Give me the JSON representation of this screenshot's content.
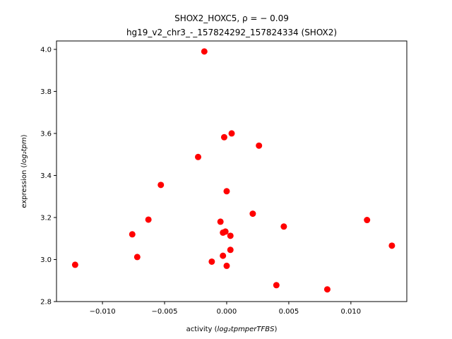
{
  "chart_data": {
    "type": "scatter",
    "title_line1": "SHOX2_HOXC5, ρ = − 0.09",
    "title_line2": "hg19_v2_chr3_-_157824292_157824334 (SHOX2)",
    "xlabel_prefix": "activity (",
    "xlabel_math": "log₂tpmperTFBS",
    "xlabel_suffix": ")",
    "ylabel_prefix": "expression (",
    "ylabel_math": "log₂tpm",
    "ylabel_suffix": ")",
    "xlim": [
      -0.0137,
      0.0145
    ],
    "ylim": [
      2.8,
      4.04
    ],
    "x_ticks": [
      -0.01,
      -0.005,
      0.0,
      0.005,
      0.01
    ],
    "x_tick_labels": [
      "−0.010",
      "−0.005",
      "0.000",
      "0.005",
      "0.010"
    ],
    "y_ticks": [
      2.8,
      3.0,
      3.2,
      3.4,
      3.6,
      3.8,
      4.0
    ],
    "y_tick_labels": [
      "2.8",
      "3.0",
      "3.2",
      "3.4",
      "3.6",
      "3.8",
      "4.0"
    ],
    "grid": false,
    "marker_color": "#ff0000",
    "points": [
      {
        "x": -0.0122,
        "y": 2.975
      },
      {
        "x": -0.0076,
        "y": 3.12
      },
      {
        "x": -0.0072,
        "y": 3.012
      },
      {
        "x": -0.0063,
        "y": 3.19
      },
      {
        "x": -0.0053,
        "y": 3.355
      },
      {
        "x": -0.0023,
        "y": 3.488
      },
      {
        "x": -0.0018,
        "y": 3.99
      },
      {
        "x": -0.0012,
        "y": 2.99
      },
      {
        "x": -0.0005,
        "y": 3.18
      },
      {
        "x": -0.0003,
        "y": 3.128
      },
      {
        "x": -0.0003,
        "y": 3.018
      },
      {
        "x": -0.0002,
        "y": 3.582
      },
      {
        "x": -0.0001,
        "y": 3.133
      },
      {
        "x": 0.0,
        "y": 3.325
      },
      {
        "x": 0.0,
        "y": 2.97
      },
      {
        "x": 0.0003,
        "y": 3.046
      },
      {
        "x": 0.0003,
        "y": 3.113
      },
      {
        "x": 0.0004,
        "y": 3.6
      },
      {
        "x": 0.0021,
        "y": 3.218
      },
      {
        "x": 0.0026,
        "y": 3.542
      },
      {
        "x": 0.004,
        "y": 2.878
      },
      {
        "x": 0.0046,
        "y": 3.157
      },
      {
        "x": 0.0081,
        "y": 2.858
      },
      {
        "x": 0.0113,
        "y": 3.188
      },
      {
        "x": 0.0133,
        "y": 3.066
      }
    ]
  }
}
